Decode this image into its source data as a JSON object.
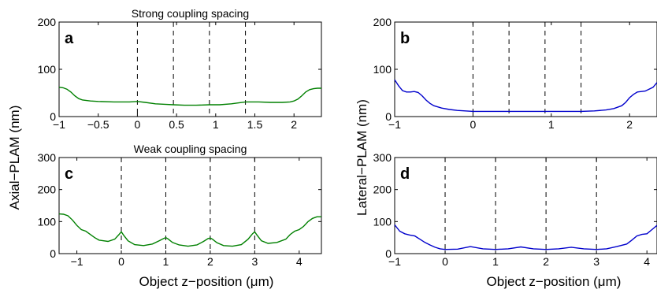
{
  "figure": {
    "ylabel_left": "Axial−PLAM (nm)",
    "ylabel_right": "Lateral−PLAM (nm)",
    "xlabel": "Object z−position (μm)"
  },
  "chart_data": [
    {
      "id": "a",
      "type": "line",
      "letter": "a",
      "title": "Strong coupling spacing",
      "xlim": [
        -1,
        2.35
      ],
      "ylim": [
        0,
        200
      ],
      "xticks": [
        -1,
        -0.5,
        0,
        0.5,
        1,
        1.5,
        2
      ],
      "xtick_labels": [
        "−1",
        "−0.5",
        "0",
        "0.5",
        "1",
        "1.5",
        "2"
      ],
      "yticks": [
        0,
        100,
        200
      ],
      "ytick_labels": [
        "0",
        "100",
        "200"
      ],
      "dashed_lines": [
        0,
        0.46,
        0.92,
        1.38
      ],
      "color": "#008000",
      "series": [
        {
          "x": [
            -1,
            -0.95,
            -0.9,
            -0.85,
            -0.8,
            -0.75,
            -0.7,
            -0.6,
            -0.5,
            -0.3,
            -0.1,
            0,
            0.1,
            0.23,
            0.35,
            0.46,
            0.6,
            0.75,
            0.92,
            1.05,
            1.2,
            1.38,
            1.55,
            1.7,
            1.85,
            1.95,
            2.0,
            2.05,
            2.1,
            2.15,
            2.2,
            2.25,
            2.3,
            2.35
          ],
          "y": [
            62,
            61,
            58,
            52,
            44,
            38,
            35,
            33,
            32,
            31,
            31,
            32,
            30,
            27,
            26,
            25,
            24,
            24,
            25,
            25,
            27,
            31,
            31,
            30,
            30,
            31,
            33,
            37,
            44,
            52,
            57,
            59,
            60,
            60
          ]
        }
      ]
    },
    {
      "id": "b",
      "type": "line",
      "letter": "b",
      "title": "",
      "xlim": [
        -1,
        2.35
      ],
      "ylim": [
        0,
        200
      ],
      "xticks": [
        -1,
        0,
        1,
        2
      ],
      "xtick_labels": [
        "−1",
        "0",
        "1",
        "2"
      ],
      "yticks": [
        0,
        100,
        200
      ],
      "ytick_labels": [
        "0",
        "100",
        "200"
      ],
      "dashed_lines": [
        0,
        0.46,
        0.92,
        1.38
      ],
      "color": "#0000cc",
      "series": [
        {
          "x": [
            -1,
            -0.95,
            -0.9,
            -0.85,
            -0.8,
            -0.75,
            -0.7,
            -0.65,
            -0.6,
            -0.55,
            -0.5,
            -0.4,
            -0.3,
            -0.2,
            -0.1,
            0,
            0.3,
            0.6,
            0.92,
            1.2,
            1.38,
            1.55,
            1.7,
            1.8,
            1.9,
            1.95,
            2.0,
            2.05,
            2.1,
            2.2,
            2.3,
            2.35
          ],
          "y": [
            78,
            65,
            55,
            52,
            52,
            53,
            51,
            44,
            35,
            28,
            23,
            18,
            15,
            13,
            12,
            11,
            11,
            11,
            11,
            11,
            11,
            12,
            14,
            17,
            23,
            30,
            40,
            47,
            52,
            54,
            62,
            72
          ]
        }
      ]
    },
    {
      "id": "c",
      "type": "line",
      "letter": "c",
      "title": "Weak coupling spacing",
      "xlim": [
        -1.4,
        4.5
      ],
      "ylim": [
        0,
        300
      ],
      "xticks": [
        -1,
        0,
        1,
        2,
        3,
        4
      ],
      "xtick_labels": [
        "−1",
        "0",
        "1",
        "2",
        "3",
        "4"
      ],
      "yticks": [
        0,
        100,
        200,
        300
      ],
      "ytick_labels": [
        "0",
        "100",
        "200",
        "300"
      ],
      "dashed_lines": [
        0,
        1,
        2,
        3
      ],
      "color": "#008000",
      "series": [
        {
          "x": [
            -1.4,
            -1.3,
            -1.2,
            -1.1,
            -1.0,
            -0.9,
            -0.8,
            -0.7,
            -0.6,
            -0.5,
            -0.3,
            -0.15,
            -0.05,
            0,
            0.05,
            0.15,
            0.3,
            0.5,
            0.7,
            0.85,
            0.95,
            1,
            1.05,
            1.15,
            1.3,
            1.5,
            1.7,
            1.85,
            1.95,
            2,
            2.05,
            2.15,
            2.3,
            2.5,
            2.7,
            2.85,
            2.95,
            3,
            3.05,
            3.15,
            3.3,
            3.5,
            3.7,
            3.8,
            3.9,
            4.0,
            4.1,
            4.2,
            4.3,
            4.4,
            4.5
          ],
          "y": [
            124,
            123,
            118,
            105,
            88,
            75,
            70,
            60,
            50,
            42,
            38,
            45,
            60,
            68,
            58,
            40,
            28,
            25,
            30,
            40,
            47,
            50,
            46,
            35,
            27,
            23,
            27,
            38,
            47,
            49,
            45,
            34,
            25,
            23,
            28,
            45,
            62,
            68,
            58,
            40,
            32,
            35,
            45,
            60,
            70,
            75,
            85,
            100,
            110,
            115,
            115
          ]
        }
      ]
    },
    {
      "id": "d",
      "type": "line",
      "letter": "d",
      "title": "",
      "xlim": [
        -1,
        4.2
      ],
      "ylim": [
        0,
        300
      ],
      "xticks": [
        -1,
        0,
        1,
        2,
        3,
        4
      ],
      "xtick_labels": [
        "−1",
        "0",
        "1",
        "2",
        "3",
        "4"
      ],
      "yticks": [
        0,
        100,
        200,
        300
      ],
      "ytick_labels": [
        "0",
        "100",
        "200",
        "300"
      ],
      "dashed_lines": [
        0,
        1,
        2,
        3
      ],
      "color": "#0000cc",
      "series": [
        {
          "x": [
            -1,
            -0.95,
            -0.9,
            -0.8,
            -0.7,
            -0.6,
            -0.5,
            -0.4,
            -0.3,
            -0.2,
            -0.1,
            0,
            0.25,
            0.5,
            0.75,
            1,
            1.25,
            1.5,
            1.75,
            2,
            2.25,
            2.5,
            2.75,
            3,
            3.2,
            3.4,
            3.6,
            3.7,
            3.8,
            3.9,
            4.0,
            4.1,
            4.2
          ],
          "y": [
            90,
            80,
            70,
            62,
            58,
            55,
            45,
            35,
            27,
            20,
            15,
            13,
            14,
            22,
            15,
            13,
            15,
            21,
            15,
            13,
            15,
            20,
            15,
            13,
            15,
            22,
            30,
            42,
            55,
            60,
            62,
            75,
            88
          ]
        }
      ]
    }
  ]
}
